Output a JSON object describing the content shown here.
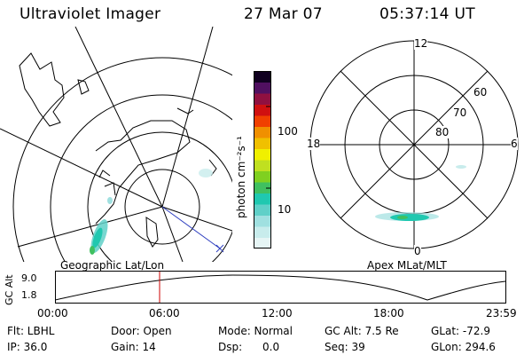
{
  "header": {
    "title": "Ultraviolet Imager",
    "date": "27 Mar 07",
    "time": "05:37:14 UT"
  },
  "panels": {
    "geo_label": "Geographic Lat/Lon",
    "apex_label": "Apex MLat/MLT"
  },
  "colorbar": {
    "unit_label": "photon cm⁻²s⁻¹",
    "ticks": [
      "100",
      "10"
    ],
    "colors": [
      "#e6f5f5",
      "#c8ecec",
      "#a0e0e0",
      "#60d0c8",
      "#20c8b0",
      "#40c060",
      "#80d020",
      "#c0e020",
      "#f0f000",
      "#f0c000",
      "#f09000",
      "#f04000",
      "#d01010",
      "#901040",
      "#501060",
      "#100020"
    ]
  },
  "apex": {
    "mlt_labels": [
      "12",
      "18",
      "6",
      "0"
    ],
    "lat_labels": [
      "60",
      "70",
      "80"
    ]
  },
  "gc_plot": {
    "ylabel": "GC Alt",
    "yticks": [
      "9.0",
      "1.8"
    ],
    "xticks": [
      "00:00",
      "06:00",
      "12:00",
      "18:00",
      "23:59"
    ],
    "marker_color": "#cc0000"
  },
  "info": {
    "flt": "Flt: LBHL",
    "ip": "IP: 36.0",
    "door": "Door: Open",
    "gain": "Gain: 14",
    "mode": "Mode: Normal",
    "dsp": "Dsp:      0.0",
    "gcalt": "GC Alt: 7.5 Re",
    "seq": "Seq: 39",
    "glat": "GLat: -72.9",
    "glon": "GLon: 294.6"
  }
}
